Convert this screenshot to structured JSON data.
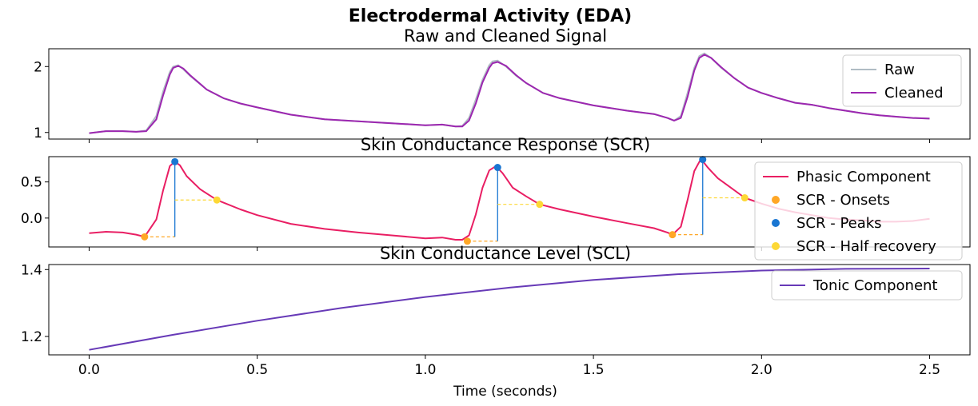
{
  "chart_data": {
    "title": "Electrodermal Activity (EDA)",
    "type": "line",
    "xlabel": "Time (seconds)",
    "xlim": [
      -0.12,
      2.62
    ],
    "xticks": [
      0.0,
      0.5,
      1.0,
      1.5,
      2.0,
      2.5
    ],
    "xtick_labels": [
      "0.0",
      "0.5",
      "1.0",
      "1.5",
      "2.0",
      "2.5"
    ],
    "panels": [
      {
        "title": "Raw and Cleaned Signal",
        "ylim": [
          0.9,
          2.27
        ],
        "yticks": [
          1,
          2
        ],
        "ytick_labels": [
          "1",
          "2"
        ],
        "legend_position": "upper right",
        "series": [
          {
            "name": "Raw",
            "type": "line",
            "color": "#B0BCC4",
            "x": [
              0,
              0.05,
              0.1,
              0.14,
              0.17,
              0.2,
              0.22,
              0.24,
              0.25,
              0.265,
              0.28,
              0.3,
              0.35,
              0.4,
              0.45,
              0.5,
              0.6,
              0.7,
              0.8,
              0.9,
              1.0,
              1.05,
              1.09,
              1.11,
              1.13,
              1.15,
              1.17,
              1.19,
              1.2,
              1.215,
              1.24,
              1.27,
              1.3,
              1.35,
              1.4,
              1.5,
              1.6,
              1.68,
              1.72,
              1.74,
              1.76,
              1.78,
              1.8,
              1.815,
              1.83,
              1.85,
              1.88,
              1.92,
              1.96,
              2.0,
              2.05,
              2.1,
              2.15,
              2.2,
              2.25,
              2.3,
              2.35,
              2.4,
              2.45,
              2.5
            ],
            "y": [
              0.99,
              1.02,
              1.02,
              1.01,
              1.03,
              1.25,
              1.62,
              1.92,
              2.0,
              2.02,
              1.96,
              1.86,
              1.65,
              1.52,
              1.44,
              1.38,
              1.27,
              1.2,
              1.17,
              1.14,
              1.11,
              1.12,
              1.09,
              1.1,
              1.22,
              1.5,
              1.8,
              2.02,
              2.08,
              2.09,
              2.0,
              1.86,
              1.75,
              1.6,
              1.52,
              1.41,
              1.33,
              1.28,
              1.22,
              1.18,
              1.25,
              1.6,
              1.98,
              2.16,
              2.2,
              2.13,
              1.98,
              1.82,
              1.68,
              1.6,
              1.52,
              1.45,
              1.42,
              1.37,
              1.33,
              1.29,
              1.26,
              1.24,
              1.22,
              1.21
            ]
          },
          {
            "name": "Cleaned",
            "type": "line",
            "color": "#9C27B0",
            "x": [
              0,
              0.05,
              0.1,
              0.14,
              0.17,
              0.2,
              0.22,
              0.24,
              0.25,
              0.265,
              0.28,
              0.3,
              0.35,
              0.4,
              0.45,
              0.5,
              0.6,
              0.7,
              0.8,
              0.9,
              1.0,
              1.05,
              1.09,
              1.11,
              1.13,
              1.15,
              1.17,
              1.19,
              1.2,
              1.215,
              1.24,
              1.27,
              1.3,
              1.35,
              1.4,
              1.5,
              1.6,
              1.68,
              1.72,
              1.74,
              1.76,
              1.78,
              1.8,
              1.815,
              1.83,
              1.85,
              1.88,
              1.92,
              1.96,
              2.0,
              2.05,
              2.1,
              2.15,
              2.2,
              2.25,
              2.3,
              2.35,
              2.4,
              2.45,
              2.5
            ],
            "y": [
              0.99,
              1.02,
              1.02,
              1.01,
              1.02,
              1.2,
              1.56,
              1.88,
              1.98,
              2.01,
              1.97,
              1.87,
              1.65,
              1.52,
              1.44,
              1.38,
              1.27,
              1.2,
              1.17,
              1.14,
              1.11,
              1.12,
              1.09,
              1.09,
              1.18,
              1.44,
              1.76,
              1.98,
              2.05,
              2.07,
              2.01,
              1.87,
              1.75,
              1.6,
              1.52,
              1.41,
              1.33,
              1.28,
              1.22,
              1.18,
              1.22,
              1.54,
              1.94,
              2.13,
              2.18,
              2.13,
              1.99,
              1.82,
              1.68,
              1.6,
              1.52,
              1.45,
              1.42,
              1.37,
              1.33,
              1.29,
              1.26,
              1.24,
              1.22,
              1.21
            ]
          }
        ]
      },
      {
        "title": "Skin Conductance Response (SCR)",
        "ylim": [
          -0.4,
          0.85
        ],
        "yticks": [
          0.0,
          0.5
        ],
        "ytick_labels": [
          "0.0",
          "0.5"
        ],
        "legend_position": "upper right",
        "series": [
          {
            "name": "Phasic Component",
            "type": "line",
            "color": "#E91E63",
            "x": [
              0,
              0.05,
              0.1,
              0.14,
              0.165,
              0.2,
              0.22,
              0.24,
              0.255,
              0.27,
              0.29,
              0.33,
              0.38,
              0.45,
              0.5,
              0.6,
              0.7,
              0.8,
              0.9,
              1.0,
              1.05,
              1.09,
              1.11,
              1.13,
              1.15,
              1.17,
              1.19,
              1.21,
              1.23,
              1.26,
              1.3,
              1.34,
              1.4,
              1.5,
              1.6,
              1.68,
              1.72,
              1.735,
              1.76,
              1.78,
              1.8,
              1.82,
              1.84,
              1.87,
              1.9,
              1.95,
              2.0,
              2.05,
              2.1,
              2.15,
              2.2,
              2.25,
              2.3,
              2.35,
              2.4,
              2.45,
              2.5
            ],
            "y": [
              -0.21,
              -0.19,
              -0.2,
              -0.23,
              -0.26,
              -0.02,
              0.38,
              0.72,
              0.78,
              0.73,
              0.58,
              0.4,
              0.25,
              0.12,
              0.04,
              -0.08,
              -0.15,
              -0.2,
              -0.24,
              -0.28,
              -0.27,
              -0.3,
              -0.3,
              -0.24,
              0.05,
              0.42,
              0.66,
              0.72,
              0.62,
              0.42,
              0.3,
              0.19,
              0.12,
              0.02,
              -0.07,
              -0.14,
              -0.2,
              -0.23,
              -0.12,
              0.25,
              0.65,
              0.82,
              0.7,
              0.55,
              0.45,
              0.28,
              0.2,
              0.13,
              0.08,
              0.04,
              0.0,
              -0.02,
              -0.03,
              -0.05,
              -0.05,
              -0.04,
              -0.01
            ]
          },
          {
            "name": "SCR - Onsets",
            "type": "scatter",
            "color": "#FFA726",
            "x": [
              0.165,
              1.125,
              1.735
            ],
            "y": [
              -0.26,
              -0.32,
              -0.23
            ]
          },
          {
            "name": "SCR - Peaks",
            "type": "scatter",
            "color": "#1976D2",
            "x": [
              0.255,
              1.215,
              1.825
            ],
            "y": [
              0.78,
              0.7,
              0.81
            ]
          },
          {
            "name": "SCR - Half recovery",
            "type": "scatter",
            "color": "#FDD835",
            "x": [
              0.38,
              1.34,
              1.95
            ],
            "y": [
              0.25,
              0.19,
              0.28
            ]
          }
        ]
      },
      {
        "title": "Skin Conductance Level (SCL)",
        "ylim": [
          1.145,
          1.415
        ],
        "yticks": [
          1.2,
          1.4
        ],
        "ytick_labels": [
          "1.2",
          "1.4"
        ],
        "legend_position": "upper right",
        "series": [
          {
            "name": "Tonic Component",
            "type": "line",
            "color": "#673AB7",
            "x": [
              0,
              0.25,
              0.5,
              0.75,
              1.0,
              1.25,
              1.5,
              1.75,
              2.0,
              2.25,
              2.5
            ],
            "y": [
              1.16,
              1.205,
              1.247,
              1.285,
              1.318,
              1.346,
              1.369,
              1.386,
              1.397,
              1.402,
              1.403
            ]
          }
        ]
      }
    ]
  }
}
